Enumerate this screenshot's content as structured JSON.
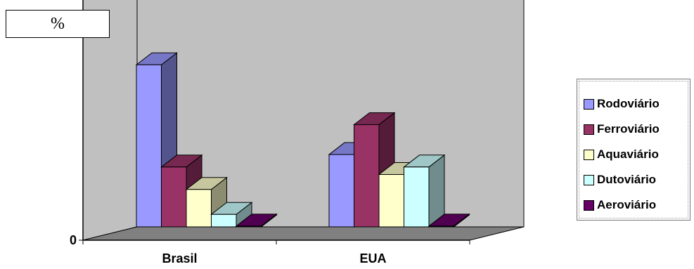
{
  "chart_data": {
    "type": "bar",
    "ylabel": "%",
    "ylim": [
      0,
      70
    ],
    "yticks": [
      0,
      10,
      20,
      30,
      40,
      50,
      60,
      70
    ],
    "categories": [
      "Brasil",
      "EUA"
    ],
    "series": [
      {
        "name": "Rodoviário",
        "color": "#9999FF",
        "values": [
          65,
          29
        ]
      },
      {
        "name": "Ferroviário",
        "color": "#993366",
        "values": [
          24,
          41
        ]
      },
      {
        "name": "Aquaviário",
        "color": "#FFFFCC",
        "values": [
          15,
          21
        ]
      },
      {
        "name": "Dutoviário",
        "color": "#CCFFFF",
        "values": [
          5,
          24
        ]
      },
      {
        "name": "Aeroviário",
        "color": "#660066",
        "values": [
          0.3,
          0.3
        ]
      }
    ],
    "grid": true,
    "legend_position": "right",
    "style": "3d",
    "wall_color": "#C0C0C0",
    "floor_color": "#808080"
  }
}
